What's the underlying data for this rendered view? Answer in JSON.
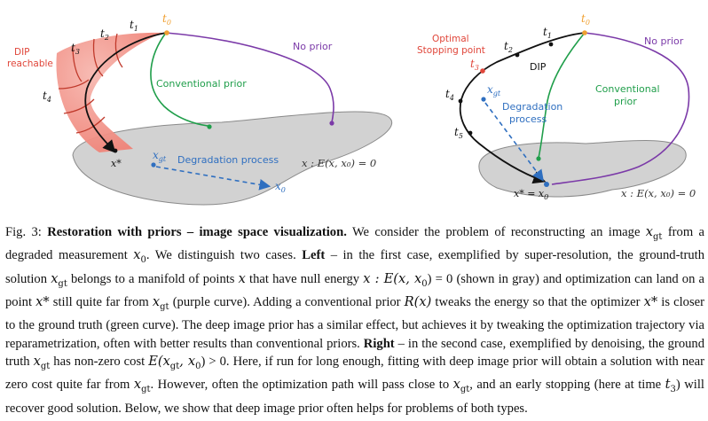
{
  "left": {
    "dip_reachable_1": "DIP",
    "dip_reachable_2": "reachable",
    "t0": "t",
    "t0_sub": "0",
    "t1": "t",
    "t1_sub": "1",
    "t2": "t",
    "t2_sub": "2",
    "t3": "t",
    "t3_sub": "3",
    "t4": "t",
    "t4_sub": "4",
    "no_prior": "No prior",
    "conventional_prior": "Conventional prior",
    "x_star": "x*",
    "x_gt": "x",
    "x_gt_sub": "gt",
    "degradation": "Degradation process",
    "x0": "x",
    "x0_sub": "0",
    "manifold": "x : E(x, x₀) = 0"
  },
  "right": {
    "optimal_1": "Optimal",
    "optimal_2": "Stopping point",
    "t0": "t",
    "t0_sub": "0",
    "t1": "t",
    "t1_sub": "1",
    "t2": "t",
    "t2_sub": "2",
    "t3": "t",
    "t3_sub": "3",
    "t4": "t",
    "t4_sub": "4",
    "t5": "t",
    "t5_sub": "5",
    "dip": "DIP",
    "no_prior": "No prior",
    "conventional_1": "Conventional",
    "conventional_2": "prior",
    "x_gt": "x",
    "x_gt_sub": "gt",
    "degradation_1": "Degradation",
    "degradation_2": "process",
    "x_star_eq": "x* = x",
    "x_star_eq_sub": "0",
    "manifold": "x : E(x, x₀) = 0"
  },
  "colors": {
    "orange": "#f0a030",
    "purple": "#7b3aa8",
    "green": "#1f9e4a",
    "blue": "#2f6fc0",
    "red": "#e0463a",
    "gray": "#d2d2d2"
  },
  "caption": {
    "fig": "Fig. 3:",
    "title": "Restoration with priors – image space visualization.",
    "s1": "We consider the problem of reconstructing an image",
    "xgt": "x",
    "gt": "gt",
    "s2": "from a degraded measurement",
    "x0": "x",
    "zero": "0",
    "s3": ". We distinguish two cases.",
    "left_label": "Left",
    "s4": "– in the first case, exemplified by super-resolution, the ground-truth solution",
    "s5": "belongs to a manifold of points",
    "s6": "x",
    "s7": "that have null energy",
    "s8": "x : E(x, x",
    "s9": ") = 0 (shown in gray) and optimization can land on a point",
    "s10": "x*",
    "s11": "still quite far from",
    "s12": "(purple curve). Adding a conventional prior",
    "s13": "R(x)",
    "s14": "tweaks the energy so that the optimizer",
    "s15": "x*",
    "s16": "is closer to the ground truth (green curve). The deep image prior has a similar effect, but achieves it by tweaking the optimization trajectory via reparametrization, often with better results than conventional priors.",
    "right_label": "Right",
    "s17": "– in the second case, exemplified by denoising, the ground truth",
    "s18": "has non-zero cost",
    "s19": "E(x",
    "s20": ", x",
    "s21": ") > 0. Here, if run for long enough, fitting with deep image prior will obtain a solution with near zero cost quite far from",
    "s22": ". However, often the optimization path will pass close to",
    "s23": ", and an early stopping (here at time",
    "s24": "t",
    "s25": "3",
    "s26": ") will recover good solution. Below, we show that deep image prior often helps for problems of both types."
  }
}
